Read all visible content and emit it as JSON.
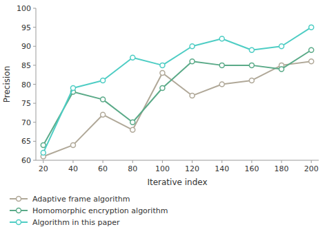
{
  "chart_data": {
    "type": "line",
    "x_label": "Iterative index",
    "y_label": "Precision",
    "x": [
      20,
      40,
      60,
      80,
      100,
      120,
      140,
      160,
      180,
      200
    ],
    "series": [
      {
        "name": "Adaptive frame algorithm",
        "color": "#b0a898",
        "values": [
          61,
          64,
          72,
          68,
          83,
          77,
          80,
          81,
          85,
          86
        ]
      },
      {
        "name": "Homomorphic encryption algorithm",
        "color": "#5aaa88",
        "values": [
          64,
          78,
          76,
          70,
          79,
          86,
          85,
          85,
          84,
          89
        ]
      },
      {
        "name": "Algorithm in this paper",
        "color": "#4ecdc4",
        "values": [
          62,
          79,
          81,
          87,
          85,
          90,
          92,
          89,
          90,
          95
        ]
      }
    ],
    "xlim": [
      15,
      205
    ],
    "ylim": [
      60,
      100
    ],
    "xticks": [
      20,
      40,
      60,
      80,
      100,
      120,
      140,
      160,
      180,
      200
    ],
    "yticks": [
      60,
      65,
      70,
      75,
      80,
      85,
      90,
      95,
      100
    ],
    "grid": false,
    "legend": "bottom",
    "marker": "circle"
  }
}
